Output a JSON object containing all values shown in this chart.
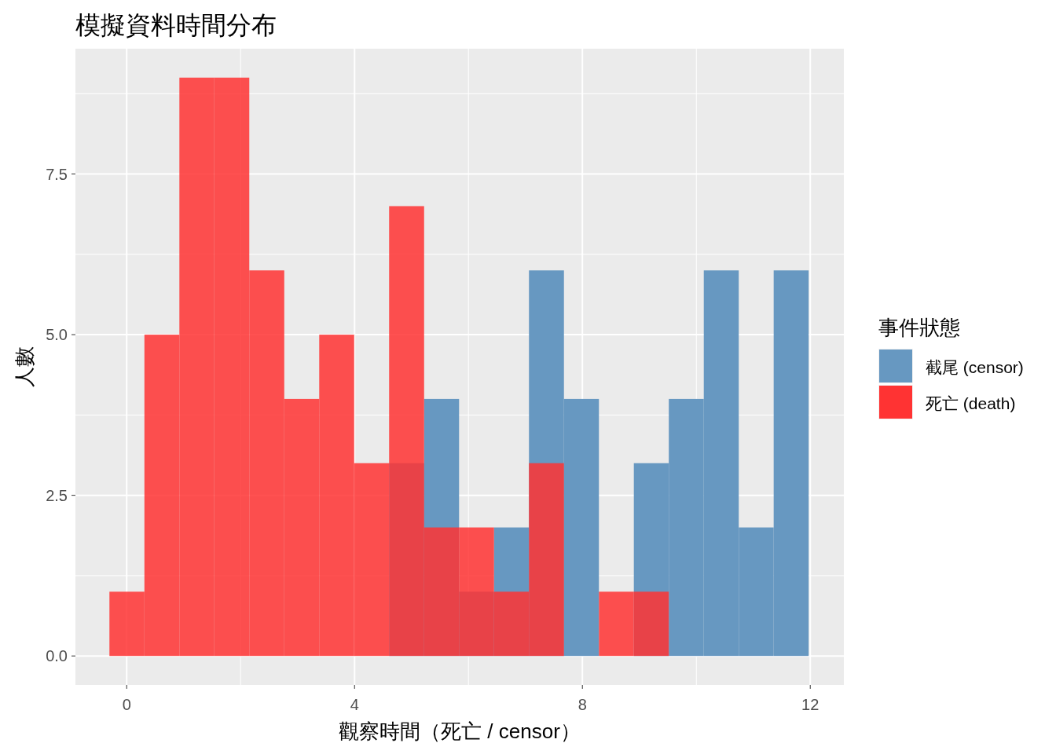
{
  "chart_data": {
    "type": "histogram",
    "title": "模擬資料時間分布",
    "xlabel": "觀察時間（死亡 / censor）",
    "ylabel": "人數",
    "legend_title": "事件狀態",
    "legend": "right",
    "grid": true,
    "bins": [
      -0.303,
      0.311,
      0.925,
      1.538,
      2.152,
      2.766,
      3.38,
      3.993,
      4.607,
      5.221,
      5.835,
      6.448,
      7.062,
      7.676,
      8.29,
      8.903,
      9.517,
      10.131,
      10.745,
      11.358,
      11.972
    ],
    "series": [
      {
        "name": "截尾 (censor)",
        "color": "#6798c1",
        "values": [
          0,
          0,
          0,
          0,
          0,
          0,
          0,
          0,
          3,
          4,
          1,
          2,
          6,
          4,
          0,
          3,
          4,
          6,
          2,
          6
        ]
      },
      {
        "name": "死亡 (death)",
        "color": "#ff3333",
        "values": [
          1,
          5,
          9,
          9,
          6,
          4,
          5,
          3,
          7,
          2,
          2,
          1,
          3,
          0,
          1,
          1,
          0,
          0,
          0,
          0
        ]
      }
    ],
    "xlim": [
      -0.9,
      12.59
    ],
    "ylim": [
      -0.45,
      9.45
    ],
    "xticks": [
      0,
      4,
      8,
      12
    ],
    "yticks": [
      {
        "value": 0,
        "label": "0.0"
      },
      {
        "value": 2.5,
        "label": "2.5"
      },
      {
        "value": 5,
        "label": "5.0"
      },
      {
        "value": 7.5,
        "label": "7.5"
      }
    ]
  }
}
